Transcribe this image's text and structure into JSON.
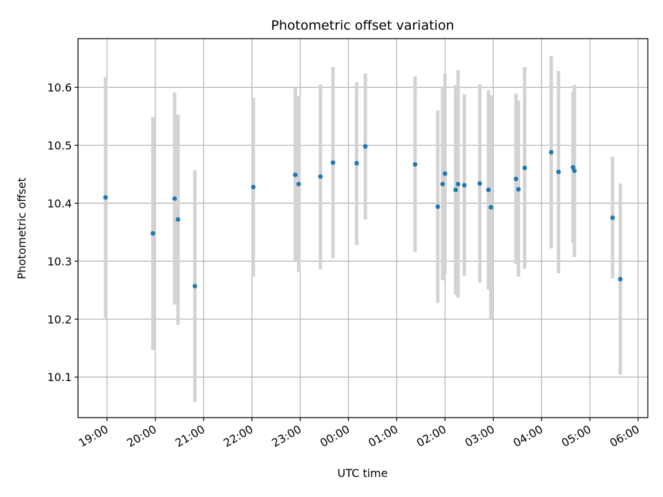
{
  "chart_data": {
    "type": "scatter",
    "title": "Photometric offset variation",
    "xlabel": "UTC time",
    "ylabel": "Photometric offset",
    "x_unit": "UTC time (hours past midnight of the first night; values ≥ 24 fall on the next day)",
    "xlim": [
      18.4,
      30.2
    ],
    "ylim": [
      10.03,
      10.684
    ],
    "x_ticks": [
      {
        "value": 19,
        "label": "19:00"
      },
      {
        "value": 20,
        "label": "20:00"
      },
      {
        "value": 21,
        "label": "21:00"
      },
      {
        "value": 22,
        "label": "22:00"
      },
      {
        "value": 23,
        "label": "23:00"
      },
      {
        "value": 24,
        "label": "00:00"
      },
      {
        "value": 25,
        "label": "01:00"
      },
      {
        "value": 26,
        "label": "02:00"
      },
      {
        "value": 27,
        "label": "03:00"
      },
      {
        "value": 28,
        "label": "04:00"
      },
      {
        "value": 29,
        "label": "05:00"
      },
      {
        "value": 30,
        "label": "06:00"
      }
    ],
    "y_ticks": [
      {
        "value": 10.1,
        "label": "10.1"
      },
      {
        "value": 10.2,
        "label": "10.2"
      },
      {
        "value": 10.3,
        "label": "10.3"
      },
      {
        "value": 10.4,
        "label": "10.4"
      },
      {
        "value": 10.5,
        "label": "10.5"
      },
      {
        "value": 10.6,
        "label": "10.6"
      }
    ],
    "grid": true,
    "colors": {
      "points": "#1f77b4",
      "error_bars": "#d3d3d3",
      "grid": "#b0b0b0"
    },
    "points": [
      {
        "x": 18.97,
        "y": 10.41,
        "low": 10.202,
        "high": 10.618
      },
      {
        "x": 19.95,
        "y": 10.348,
        "low": 10.147,
        "high": 10.549
      },
      {
        "x": 20.4,
        "y": 10.408,
        "low": 10.225,
        "high": 10.591
      },
      {
        "x": 20.47,
        "y": 10.372,
        "low": 10.19,
        "high": 10.553
      },
      {
        "x": 20.82,
        "y": 10.257,
        "low": 10.057,
        "high": 10.457
      },
      {
        "x": 22.03,
        "y": 10.428,
        "low": 10.273,
        "high": 10.582
      },
      {
        "x": 22.9,
        "y": 10.449,
        "low": 10.3,
        "high": 10.599
      },
      {
        "x": 22.97,
        "y": 10.433,
        "low": 10.281,
        "high": 10.585
      },
      {
        "x": 23.42,
        "y": 10.446,
        "low": 10.286,
        "high": 10.605
      },
      {
        "x": 23.68,
        "y": 10.47,
        "low": 10.305,
        "high": 10.635
      },
      {
        "x": 24.17,
        "y": 10.469,
        "low": 10.328,
        "high": 10.609
      },
      {
        "x": 24.35,
        "y": 10.498,
        "low": 10.372,
        "high": 10.624
      },
      {
        "x": 25.38,
        "y": 10.467,
        "low": 10.316,
        "high": 10.619
      },
      {
        "x": 25.85,
        "y": 10.394,
        "low": 10.228,
        "high": 10.56
      },
      {
        "x": 25.95,
        "y": 10.433,
        "low": 10.267,
        "high": 10.6
      },
      {
        "x": 26.0,
        "y": 10.451,
        "low": 10.278,
        "high": 10.624
      },
      {
        "x": 26.22,
        "y": 10.423,
        "low": 10.242,
        "high": 10.604
      },
      {
        "x": 26.27,
        "y": 10.433,
        "low": 10.237,
        "high": 10.63
      },
      {
        "x": 26.4,
        "y": 10.431,
        "low": 10.275,
        "high": 10.588
      },
      {
        "x": 26.72,
        "y": 10.434,
        "low": 10.263,
        "high": 10.605
      },
      {
        "x": 26.9,
        "y": 10.423,
        "low": 10.251,
        "high": 10.595
      },
      {
        "x": 26.95,
        "y": 10.393,
        "low": 10.2,
        "high": 10.586
      },
      {
        "x": 27.47,
        "y": 10.442,
        "low": 10.295,
        "high": 10.589
      },
      {
        "x": 27.52,
        "y": 10.424,
        "low": 10.273,
        "high": 10.577
      },
      {
        "x": 27.65,
        "y": 10.461,
        "low": 10.287,
        "high": 10.635
      },
      {
        "x": 28.2,
        "y": 10.488,
        "low": 10.322,
        "high": 10.654
      },
      {
        "x": 28.35,
        "y": 10.454,
        "low": 10.279,
        "high": 10.628
      },
      {
        "x": 28.65,
        "y": 10.462,
        "low": 10.331,
        "high": 10.592
      },
      {
        "x": 28.68,
        "y": 10.456,
        "low": 10.307,
        "high": 10.604
      },
      {
        "x": 29.47,
        "y": 10.375,
        "low": 10.27,
        "high": 10.48
      },
      {
        "x": 29.63,
        "y": 10.269,
        "low": 10.104,
        "high": 10.434
      }
    ]
  }
}
